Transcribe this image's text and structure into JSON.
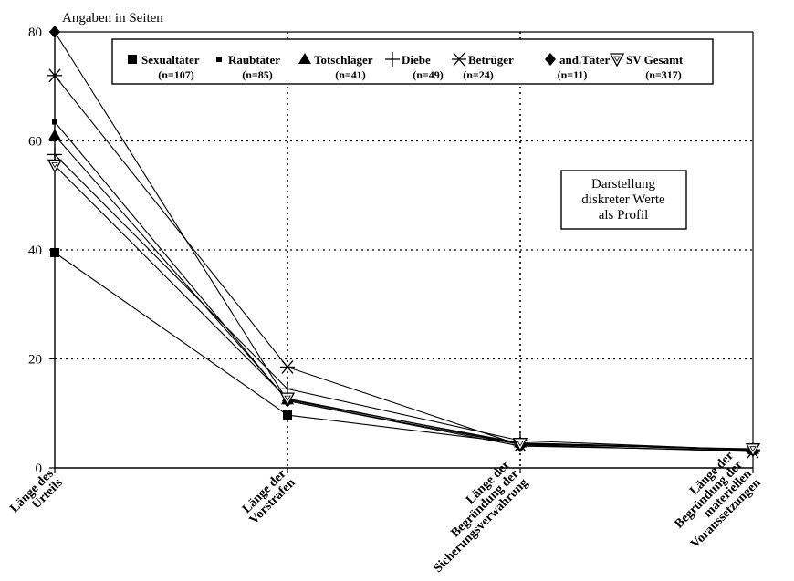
{
  "chart_data": {
    "type": "line",
    "ylabel": "Angaben in Seiten",
    "ylim": [
      0,
      80
    ],
    "yticks": [
      0,
      20,
      40,
      60,
      80
    ],
    "categories": [
      [
        "Länge des",
        "Urteils"
      ],
      [
        "Länge der",
        "Vorstrafen"
      ],
      [
        "Länge der",
        "Begründung der",
        "Sicherungsverwahrung"
      ],
      [
        "Länge der",
        "Begründung der",
        "materiellen",
        "Voraussetzungen"
      ]
    ],
    "grid": "dotted",
    "legend_position": "top",
    "annotation": [
      "Darstellung",
      "diskreter Werte",
      "als Profil"
    ],
    "series": [
      {
        "name": "Sexualtäter",
        "n_label": "(n=107)",
        "marker": "square",
        "values": [
          39.5,
          9.7,
          4.5,
          3.3
        ]
      },
      {
        "name": "Raubtäter",
        "n_label": "(n=85)",
        "marker": "small-square",
        "values": [
          63.5,
          12.3,
          4.3,
          3.5
        ]
      },
      {
        "name": "Totschläger",
        "n_label": "(n=41)",
        "marker": "triangle",
        "values": [
          61.0,
          12.5,
          4.6,
          3.4
        ]
      },
      {
        "name": "Diebe",
        "n_label": "(n=49)",
        "marker": "plus",
        "values": [
          57.5,
          14.5,
          5.0,
          3.3
        ]
      },
      {
        "name": "Betrüger",
        "n_label": "(n=24)",
        "marker": "asterisk",
        "values": [
          72.0,
          18.5,
          4.2,
          3.0
        ]
      },
      {
        "name": "and.Täter",
        "n_label": "(n=11)",
        "marker": "diamond",
        "values": [
          80.0,
          12.3,
          4.0,
          3.2
        ]
      },
      {
        "name": "SV Gesamt",
        "n_label": "(n=317)",
        "marker": "open-triangle-down",
        "values": [
          55.5,
          12.7,
          4.4,
          3.4
        ]
      }
    ]
  }
}
